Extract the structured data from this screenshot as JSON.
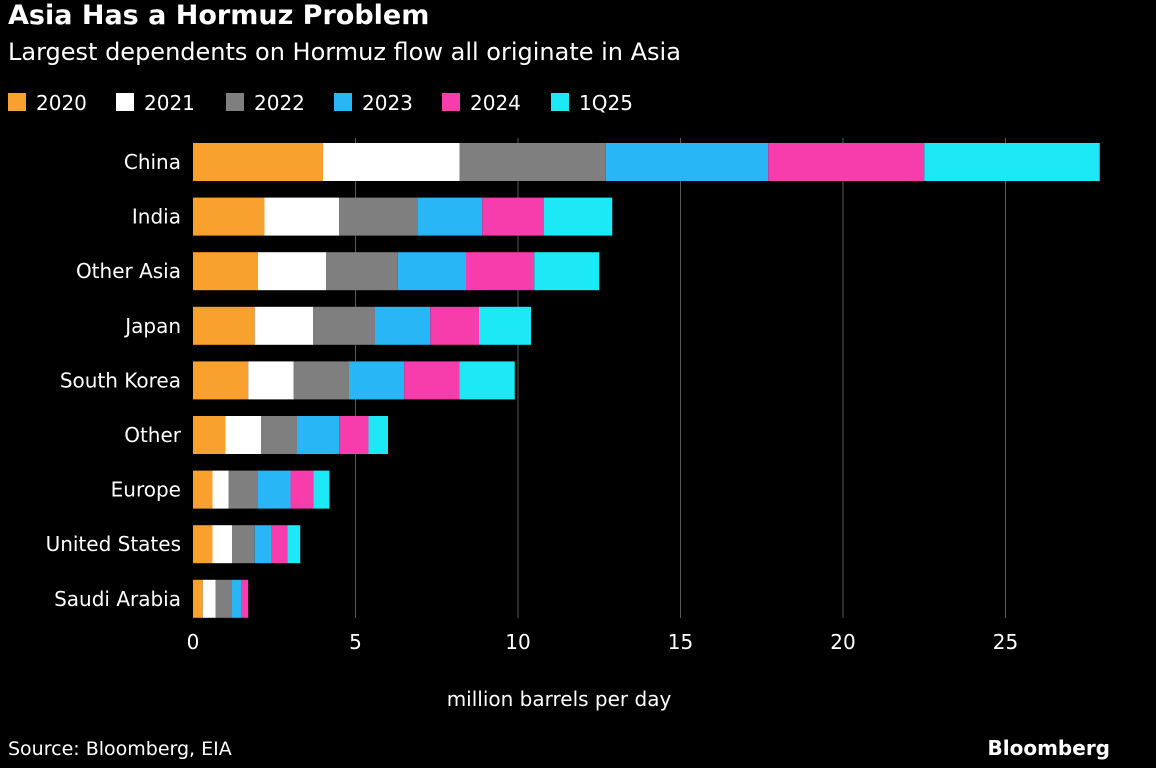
{
  "header": {
    "title": "Asia Has a Hormuz Problem",
    "subtitle": "Largest dependents on Hormuz flow all originate in Asia"
  },
  "footer": {
    "source": "Source: Bloomberg, EIA",
    "brand": "Bloomberg"
  },
  "chart_data": {
    "type": "bar",
    "orientation": "horizontal",
    "stacked": true,
    "title": "Asia Has a Hormuz Problem",
    "subtitle": "Largest dependents on Hormuz flow all originate in Asia",
    "xlabel": "million barrels per day",
    "ylabel": "",
    "xlim": [
      0,
      28
    ],
    "xticks": [
      0,
      5,
      10,
      15,
      20,
      25
    ],
    "grid": true,
    "legend_position": "top",
    "categories": [
      "China",
      "India",
      "Other Asia",
      "Japan",
      "South Korea",
      "Other",
      "Europe",
      "United States",
      "Saudi Arabia"
    ],
    "series": [
      {
        "name": "2020",
        "color": "#f9a12e",
        "values": [
          4.0,
          2.2,
          2.0,
          1.9,
          1.7,
          1.0,
          0.6,
          0.6,
          0.3
        ]
      },
      {
        "name": "2021",
        "color": "#ffffff",
        "values": [
          4.2,
          2.3,
          2.1,
          1.8,
          1.4,
          1.1,
          0.5,
          0.6,
          0.4
        ]
      },
      {
        "name": "2022",
        "color": "#7f7f7f",
        "values": [
          4.5,
          2.4,
          2.2,
          1.9,
          1.7,
          1.1,
          0.9,
          0.7,
          0.5
        ]
      },
      {
        "name": "2023",
        "color": "#29b6f6",
        "values": [
          5.0,
          2.0,
          2.1,
          1.7,
          1.7,
          1.3,
          1.0,
          0.5,
          0.3
        ]
      },
      {
        "name": "2024",
        "color": "#f73cab",
        "values": [
          4.8,
          1.9,
          2.1,
          1.5,
          1.7,
          0.9,
          0.7,
          0.5,
          0.2
        ]
      },
      {
        "name": "1Q25",
        "color": "#1de9f6",
        "values": [
          5.4,
          2.1,
          2.0,
          1.6,
          1.7,
          0.6,
          0.5,
          0.4,
          0.0
        ]
      }
    ]
  }
}
